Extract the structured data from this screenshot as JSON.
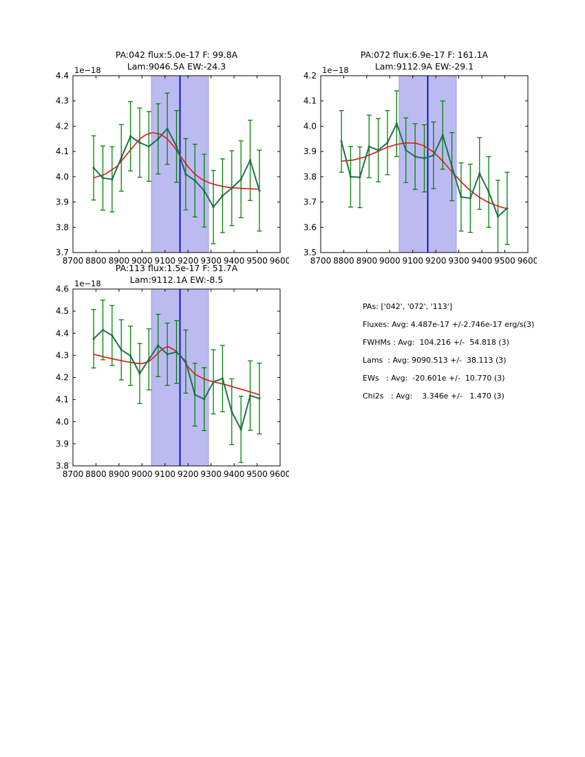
{
  "figure": {
    "background": "#ffffff"
  },
  "colors": {
    "data_line": "#1e6f4c",
    "error_bar": "#008000",
    "fit_line": "#e62420",
    "band_fill": "#bbbbf2",
    "band_edge": "#9a9ade",
    "center_line": "#0000cc",
    "axis": "#000000"
  },
  "stats_panel": {
    "lines": [
      "PAs: ['042', '072', '113']",
      "Fluxes: Avg: 4.487e-17 +/-2.746e-17 erg/s(3)",
      "FWHMs : Avg:  104.216 +/-  54.818 (3)",
      "Lams  : Avg: 9090.513 +/-  38.113 (3)",
      "EWs   : Avg:  -20.601e +/-  10.770 (3)",
      "Chi2s   : Avg:    3.346e +/-   1.470 (3)"
    ]
  },
  "chart_data": [
    {
      "type": "line",
      "title_line1": "PA:042 flux:5.0e-17 F: 99.8A",
      "title_line2": "Lam:9046.5A EW:-24.3",
      "offset_label": "1e−18",
      "xlabel": "",
      "ylabel": "",
      "xlim": [
        8700,
        9600
      ],
      "ylim": [
        3.7,
        4.4
      ],
      "xticks": [
        8700,
        8800,
        8900,
        9000,
        9100,
        9200,
        9300,
        9400,
        9500,
        9600
      ],
      "yticks": [
        3.7,
        3.8,
        3.9,
        4.0,
        4.1,
        4.2,
        4.3,
        4.4
      ],
      "band": [
        9041,
        9289
      ],
      "center_line_x": 9165,
      "x": [
        8790,
        8830,
        8870,
        8910,
        8950,
        8990,
        9030,
        9070,
        9110,
        9150,
        9190,
        9230,
        9270,
        9310,
        9350,
        9390,
        9430,
        9470,
        9510
      ],
      "y": [
        4.035,
        3.995,
        3.99,
        4.075,
        4.16,
        4.135,
        4.12,
        4.15,
        4.19,
        4.12,
        4.01,
        3.985,
        3.945,
        3.88,
        3.925,
        3.955,
        3.99,
        4.065,
        3.945
      ],
      "yerr": [
        0.127,
        0.127,
        0.129,
        0.132,
        0.137,
        0.137,
        0.138,
        0.139,
        0.141,
        0.142,
        0.141,
        0.144,
        0.144,
        0.145,
        0.146,
        0.148,
        0.152,
        0.159,
        0.16
      ],
      "fit": {
        "x": [
          8790,
          8840,
          8890,
          8940,
          8990,
          9020,
          9046,
          9080,
          9110,
          9140,
          9170,
          9200,
          9230,
          9260,
          9290,
          9320,
          9360,
          9400,
          9450,
          9510
        ],
        "y": [
          3.996,
          4.01,
          4.04,
          4.095,
          4.15,
          4.168,
          4.175,
          4.168,
          4.15,
          4.118,
          4.078,
          4.04,
          4.01,
          3.99,
          3.977,
          3.968,
          3.96,
          3.956,
          3.953,
          3.951
        ]
      }
    },
    {
      "type": "line",
      "title_line1": "PA:072 flux:6.9e-17 F: 161.1A",
      "title_line2": "Lam:9112.9A EW:-29.1",
      "offset_label": "1e−18",
      "xlabel": "",
      "ylabel": "",
      "xlim": [
        8700,
        9600
      ],
      "ylim": [
        3.5,
        4.2
      ],
      "xticks": [
        8700,
        8800,
        8900,
        9000,
        9100,
        9200,
        9300,
        9400,
        9500,
        9600
      ],
      "yticks": [
        3.5,
        3.6,
        3.7,
        3.8,
        3.9,
        4.0,
        4.1,
        4.2
      ],
      "band": [
        9041,
        9289
      ],
      "center_line_x": 9165,
      "x": [
        8790,
        8830,
        8870,
        8910,
        8950,
        8990,
        9030,
        9070,
        9110,
        9150,
        9190,
        9230,
        9270,
        9310,
        9350,
        9390,
        9430,
        9470,
        9510
      ],
      "y": [
        3.94,
        3.8,
        3.798,
        3.92,
        3.905,
        3.935,
        4.01,
        3.905,
        3.88,
        3.873,
        3.885,
        3.965,
        3.84,
        3.72,
        3.715,
        3.813,
        3.74,
        3.643,
        3.675
      ],
      "yerr": [
        0.122,
        0.12,
        0.12,
        0.124,
        0.125,
        0.127,
        0.13,
        0.128,
        0.13,
        0.133,
        0.132,
        0.135,
        0.135,
        0.135,
        0.135,
        0.142,
        0.14,
        0.143,
        0.143
      ],
      "fit": {
        "x": [
          8790,
          8840,
          8890,
          8940,
          8990,
          9030,
          9070,
          9113,
          9150,
          9190,
          9230,
          9270,
          9310,
          9350,
          9390,
          9430,
          9470,
          9510
        ],
        "y": [
          3.862,
          3.866,
          3.878,
          3.897,
          3.917,
          3.928,
          3.934,
          3.933,
          3.922,
          3.898,
          3.862,
          3.82,
          3.78,
          3.745,
          3.718,
          3.698,
          3.684,
          3.673
        ]
      }
    },
    {
      "type": "line",
      "title_line1": "PA:113 flux:1.5e-17 F: 51.7A",
      "title_line2": "Lam:9112.1A EW:-8.5",
      "offset_label": "1e−18",
      "xlabel": "",
      "ylabel": "",
      "xlim": [
        8700,
        9600
      ],
      "ylim": [
        3.8,
        4.6
      ],
      "xticks": [
        8700,
        8800,
        8900,
        9000,
        9100,
        9200,
        9300,
        9400,
        9500,
        9600
      ],
      "yticks": [
        3.8,
        3.9,
        4.0,
        4.1,
        4.2,
        4.3,
        4.4,
        4.5,
        4.6
      ],
      "band": [
        9041,
        9289
      ],
      "center_line_x": 9165,
      "x": [
        8790,
        8830,
        8870,
        8910,
        8950,
        8990,
        9030,
        9070,
        9110,
        9150,
        9190,
        9230,
        9270,
        9310,
        9350,
        9390,
        9430,
        9470,
        9510
      ],
      "y": [
        4.375,
        4.415,
        4.39,
        4.325,
        4.298,
        4.218,
        4.282,
        4.345,
        4.305,
        4.315,
        4.272,
        4.122,
        4.102,
        4.18,
        4.195,
        4.045,
        3.965,
        4.118,
        4.105
      ],
      "yerr": [
        0.132,
        0.135,
        0.136,
        0.136,
        0.134,
        0.136,
        0.138,
        0.141,
        0.141,
        0.142,
        0.143,
        0.142,
        0.142,
        0.145,
        0.15,
        0.149,
        0.15,
        0.157,
        0.16
      ],
      "fit": {
        "x": [
          8790,
          8840,
          8890,
          8940,
          8975,
          9000,
          9030,
          9060,
          9090,
          9112,
          9140,
          9170,
          9200,
          9230,
          9260,
          9290,
          9320,
          9360,
          9400,
          9450,
          9510
        ],
        "y": [
          4.305,
          4.292,
          4.28,
          4.27,
          4.264,
          4.263,
          4.272,
          4.3,
          4.33,
          4.34,
          4.325,
          4.295,
          4.248,
          4.215,
          4.198,
          4.186,
          4.178,
          4.168,
          4.156,
          4.141,
          4.122
        ]
      }
    }
  ]
}
